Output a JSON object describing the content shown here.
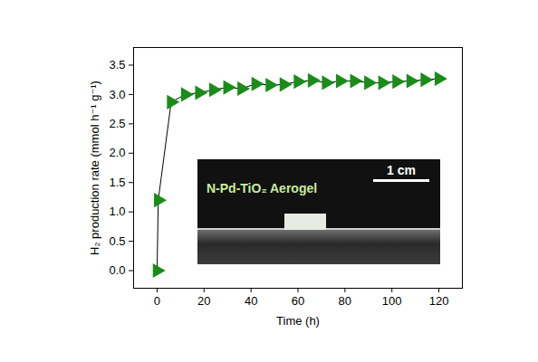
{
  "chart_data": {
    "type": "line",
    "x_label": "Time (h)",
    "y_label": "H₂ production rate (mmol h⁻¹ g⁻¹)",
    "x": [
      0,
      0.5,
      6,
      12,
      18,
      24,
      30,
      36,
      42,
      48,
      54,
      60,
      66,
      72,
      78,
      84,
      90,
      96,
      102,
      108,
      114,
      120
    ],
    "values": [
      0,
      1.2,
      2.87,
      3.0,
      3.03,
      3.08,
      3.12,
      3.1,
      3.18,
      3.16,
      3.17,
      3.22,
      3.24,
      3.2,
      3.23,
      3.23,
      3.2,
      3.2,
      3.22,
      3.23,
      3.25,
      3.27
    ],
    "color": "#1a8c1a",
    "marker": "triangle",
    "xlim": [
      -10,
      130
    ],
    "ylim": [
      -0.3,
      3.8
    ],
    "xticks": [
      0,
      20,
      40,
      60,
      80,
      100,
      120
    ],
    "yticks": [
      {
        "value": 0,
        "label": "0.0"
      },
      0.5,
      {
        "value": 1,
        "label": "1.0"
      },
      1.5,
      {
        "value": 2,
        "label": "2.0"
      },
      2.5,
      {
        "value": 3,
        "label": "3.0"
      },
      3.5
    ],
    "annotations": [
      "N-Pd-TiO₂ Aerogel",
      "1 cm"
    ]
  }
}
